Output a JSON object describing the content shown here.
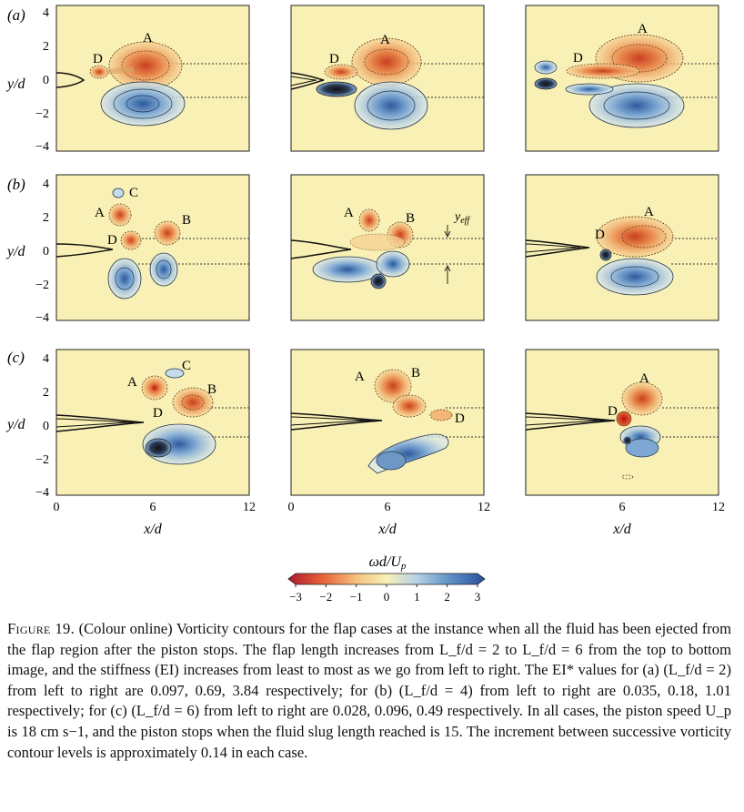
{
  "rows": [
    {
      "label": "(a)"
    },
    {
      "label": "(b)"
    },
    {
      "label": "(c)"
    }
  ],
  "axis": {
    "ylabel": "y/d",
    "xlabel": "x/d",
    "yticks": [
      "4",
      "2",
      "0",
      "−2",
      "−4"
    ],
    "xticks": [
      "0",
      "6",
      "12"
    ]
  },
  "annotations": {
    "a1": [
      "A",
      "D"
    ],
    "a2": [
      "A",
      "D"
    ],
    "a3": [
      "A",
      "D"
    ],
    "b1": [
      "A",
      "B",
      "C",
      "D"
    ],
    "b2": [
      "A",
      "B"
    ],
    "b3": [
      "A",
      "D"
    ],
    "c1": [
      "A",
      "B",
      "C",
      "D"
    ],
    "c2": [
      "A",
      "B",
      "D"
    ],
    "c3": [
      "A",
      "D"
    ],
    "yeff": "y",
    "yeff_sub": "eff"
  },
  "colorbar": {
    "label_omega": "ω",
    "label_rest": "d/U",
    "label_sub": "p",
    "ticks": [
      "−3",
      "−2",
      "−1",
      "0",
      "1",
      "2",
      "3"
    ],
    "min": -3,
    "max": 3
  },
  "caption": {
    "figure_label": "Figure 19.",
    "text": "(Colour online) Vorticity contours for the flap cases at the instance when all the fluid has been ejected from the flap region after the piston stops. The flap length increases from L_f/d = 2 to L_f/d = 6 from the top to bottom image, and the stiffness (EI) increases from least to most as we go from left to right. The EI* values for (a) (L_f/d = 2) from left to right are 0.097, 0.69, 3.84 respectively; for (b) (L_f/d = 4) from left to right are 0.035, 0.18, 1.01 respectively; for (c) (L_f/d = 6) from left to right are 0.028, 0.096, 0.49 respectively. In all cases, the piston speed U_p is 18 cm s−1, and the piston stops when the fluid slug length reached is 15. The increment between successive vorticity contour levels is approximately 0.14 in each case."
  },
  "colors": {
    "background": "#f8f0b4",
    "positive": "#3b6db0",
    "negative": "#d2552a"
  }
}
